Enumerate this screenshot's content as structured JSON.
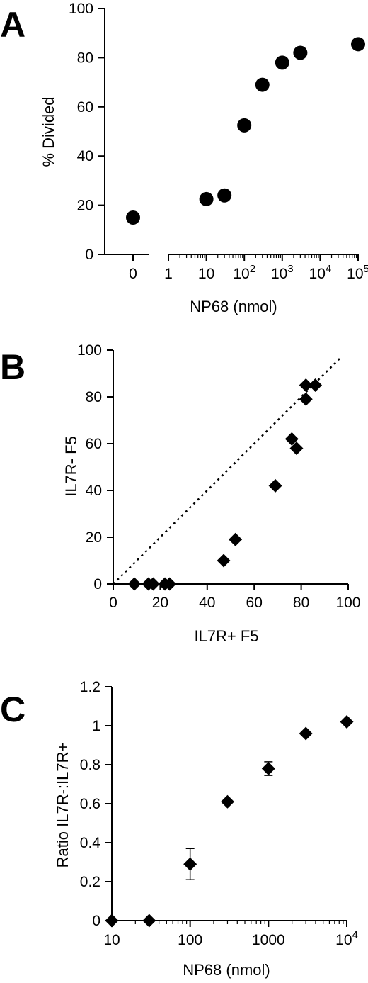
{
  "chart_data": [
    {
      "panel": "A",
      "type": "scatter",
      "xlabel": "NP68 (nmol)",
      "ylabel": "% Divided",
      "xscale": "log (with separate zero point)",
      "ylim": [
        0,
        100
      ],
      "yticks": [
        0,
        20,
        40,
        60,
        80,
        100
      ],
      "zero_tick_label": "0",
      "log_tick_labels": [
        {
          "value": 1,
          "mantissa": "1",
          "exp": ""
        },
        {
          "value": 10,
          "mantissa": "10",
          "exp": ""
        },
        {
          "value": 100,
          "mantissa": "10",
          "exp": "2"
        },
        {
          "value": 1000,
          "mantissa": "10",
          "exp": "3"
        },
        {
          "value": 10000,
          "mantissa": "10",
          "exp": "4"
        },
        {
          "value": 100000,
          "mantissa": "10",
          "exp": "5"
        }
      ],
      "marker": "circle",
      "points": [
        {
          "x": 0,
          "y": 15
        },
        {
          "x": 10,
          "y": 22.5
        },
        {
          "x": 30,
          "y": 24
        },
        {
          "x": 100,
          "y": 52.5
        },
        {
          "x": 300,
          "y": 69
        },
        {
          "x": 1000,
          "y": 78
        },
        {
          "x": 3000,
          "y": 82
        },
        {
          "x": 100000,
          "y": 85.5
        }
      ]
    },
    {
      "panel": "B",
      "type": "scatter",
      "xlabel": "IL7R+ F5",
      "ylabel": "IL7R- F5",
      "xlim": [
        0,
        100
      ],
      "ylim": [
        0,
        100
      ],
      "xticks": [
        0,
        20,
        40,
        60,
        80,
        100
      ],
      "yticks": [
        0,
        20,
        40,
        60,
        80,
        100
      ],
      "marker": "diamond",
      "reference_line": "y = x (dotted)",
      "points": [
        {
          "x": 9,
          "y": 0
        },
        {
          "x": 15,
          "y": 0
        },
        {
          "x": 17,
          "y": 0
        },
        {
          "x": 22,
          "y": 0
        },
        {
          "x": 24,
          "y": 0
        },
        {
          "x": 47,
          "y": 10
        },
        {
          "x": 52,
          "y": 19
        },
        {
          "x": 69,
          "y": 42
        },
        {
          "x": 76,
          "y": 62
        },
        {
          "x": 78,
          "y": 58
        },
        {
          "x": 82,
          "y": 79
        },
        {
          "x": 82,
          "y": 85
        },
        {
          "x": 86,
          "y": 85
        }
      ]
    },
    {
      "panel": "C",
      "type": "scatter",
      "xlabel": "NP68 (nmol)",
      "ylabel": "Ratio IL7R-:IL7R+",
      "xscale": "log",
      "xlim": [
        10,
        10000
      ],
      "ylim": [
        0,
        1.2
      ],
      "yticks": [
        {
          "value": 0,
          "label": "0"
        },
        {
          "value": 0.2,
          "label": "0.2"
        },
        {
          "value": 0.4,
          "label": "0.4"
        },
        {
          "value": 0.6,
          "label": "0.6"
        },
        {
          "value": 0.8,
          "label": "0.8"
        },
        {
          "value": 1,
          "label": "1"
        },
        {
          "value": 1.2,
          "label": "1.2"
        }
      ],
      "xticks": [
        {
          "value": 10,
          "mantissa": "10",
          "exp": ""
        },
        {
          "value": 100,
          "mantissa": "100",
          "exp": ""
        },
        {
          "value": 1000,
          "mantissa": "1000",
          "exp": ""
        },
        {
          "value": 10000,
          "mantissa": "10",
          "exp": "4"
        }
      ],
      "marker": "diamond",
      "points": [
        {
          "x": 10,
          "y": 0,
          "err": 0
        },
        {
          "x": 30,
          "y": 0,
          "err": 0
        },
        {
          "x": 100,
          "y": 0.29,
          "err": 0.08
        },
        {
          "x": 300,
          "y": 0.61,
          "err": 0
        },
        {
          "x": 1000,
          "y": 0.78,
          "err": 0.035
        },
        {
          "x": 3000,
          "y": 0.96,
          "err": 0
        },
        {
          "x": 10000,
          "y": 1.02,
          "err": 0
        }
      ]
    }
  ]
}
